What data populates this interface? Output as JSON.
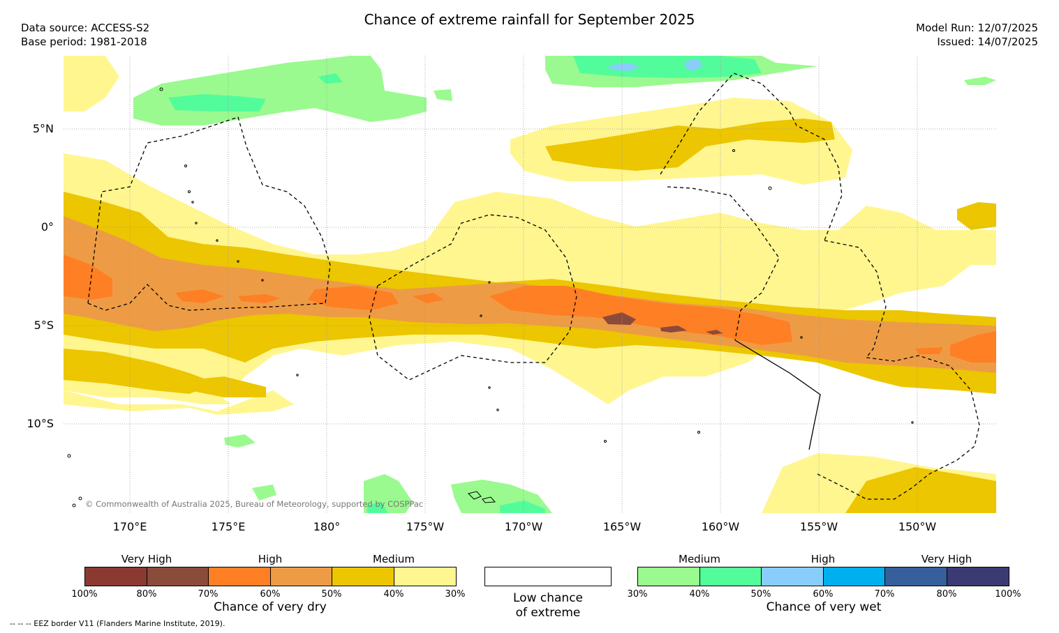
{
  "header": {
    "title": "Chance of extreme rainfall for September 2025",
    "data_source": "Data source: ACCESS-S2",
    "base_period": "Base period: 1981-2018",
    "model_run": "Model Run: 12/07/2025",
    "issued": "Issued: 14/07/2025"
  },
  "map": {
    "lat_labels": [
      "5°N",
      "0°",
      "5°S",
      "10°S"
    ],
    "lon_labels": [
      "170°E",
      "175°E",
      "180°",
      "175°W",
      "170°W",
      "165°W",
      "160°W",
      "155°W",
      "150°W"
    ],
    "copyright": "© Commonwealth of Australia 2025, Bureau of Meteorology, supported by COSPPac"
  },
  "dry_scale": {
    "colors": [
      "#8b3a31",
      "#8a4b3a",
      "#ff7f24",
      "#ed9c45",
      "#ecc600",
      "#fff690"
    ],
    "group_labels": [
      "Very High",
      "High",
      "Medium"
    ],
    "ticks": [
      "100%",
      "80%",
      "70%",
      "60%",
      "50%",
      "40%",
      "30%"
    ],
    "caption": "Chance of very dry"
  },
  "low_scale": {
    "color": "#ffffff",
    "caption_line1": "Low chance",
    "caption_line2": "of extreme"
  },
  "wet_scale": {
    "colors": [
      "#9afa8f",
      "#52fc9b",
      "#89cdfb",
      "#00b0ee",
      "#365f9c",
      "#3b3a72"
    ],
    "group_labels": [
      "Medium",
      "High",
      "Very High"
    ],
    "ticks": [
      "30%",
      "40%",
      "50%",
      "60%",
      "70%",
      "80%",
      "100%"
    ],
    "caption": "Chance of very wet"
  },
  "footnote": "--  --  -- EEZ border V11 (Flanders Marine Institute, 2019)."
}
